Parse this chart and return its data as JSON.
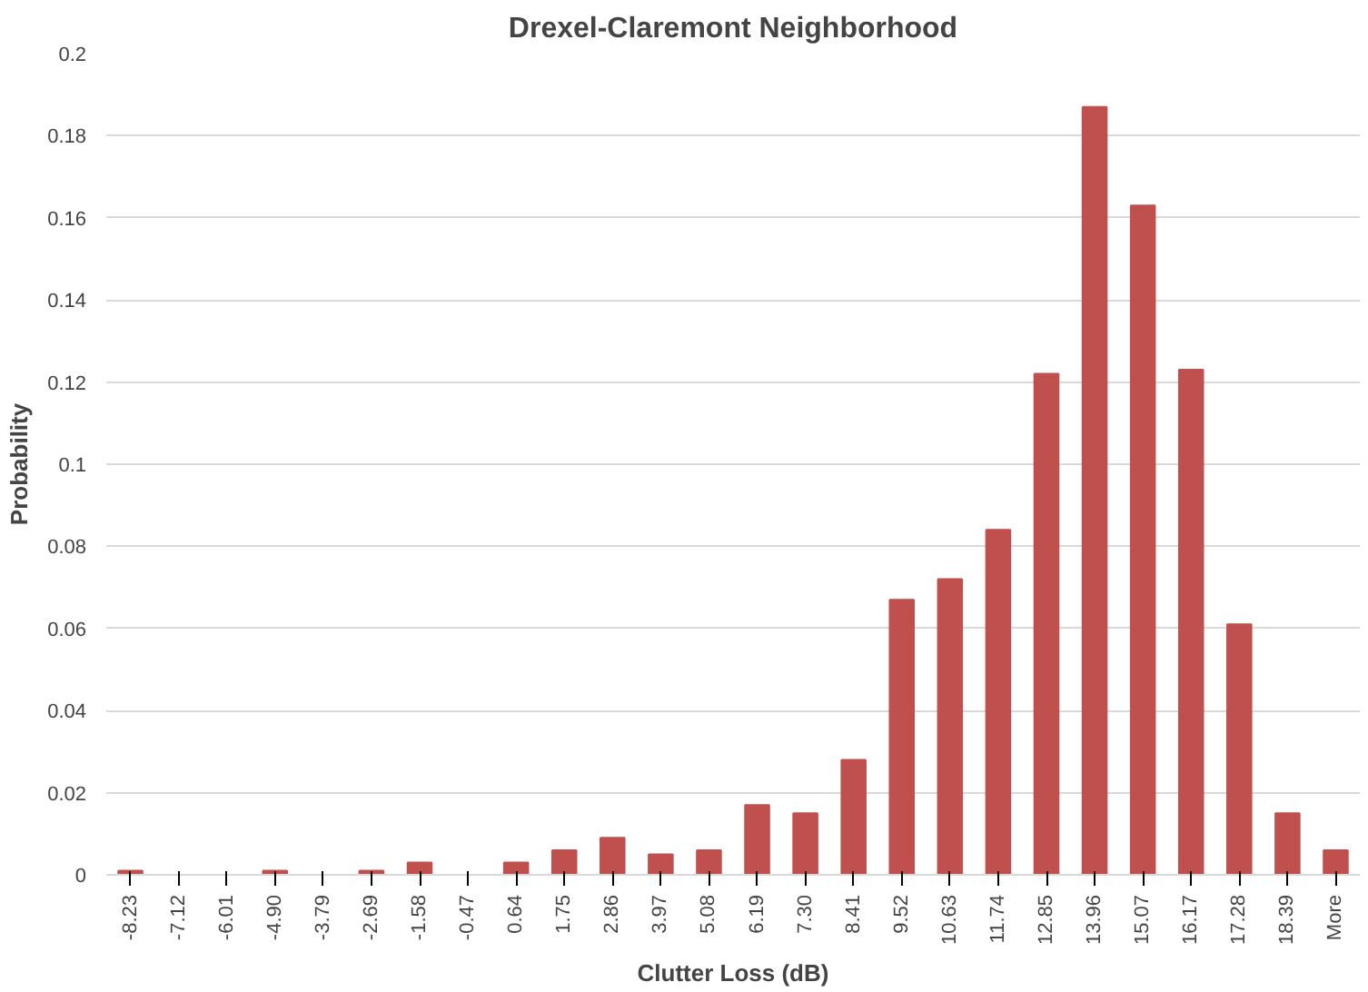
{
  "chart_data": {
    "type": "bar",
    "title": "Drexel-Claremont Neighborhood",
    "xlabel": "Clutter Loss (dB)",
    "ylabel": "Probability",
    "categories": [
      "-8.23",
      "-7.12",
      "-6.01",
      "-4.90",
      "-3.79",
      "-2.69",
      "-1.58",
      "-0.47",
      "0.64",
      "1.75",
      "2.86",
      "3.97",
      "5.08",
      "6.19",
      "7.30",
      "8.41",
      "9.52",
      "10.63",
      "11.74",
      "12.85",
      "13.96",
      "15.07",
      "16.17",
      "17.28",
      "18.39",
      "More"
    ],
    "values": [
      0.001,
      0,
      0,
      0.001,
      0,
      0.001,
      0.003,
      0,
      0.003,
      0.006,
      0.009,
      0.005,
      0.006,
      0.017,
      0.015,
      0.028,
      0.067,
      0.072,
      0.084,
      0.122,
      0.187,
      0.163,
      0.123,
      0.061,
      0.015,
      0.006
    ],
    "color": "#c0504d",
    "ylim": [
      0,
      0.2
    ],
    "yticks": [
      0,
      0.02,
      0.04,
      0.06,
      0.08,
      0.1,
      0.12,
      0.14,
      0.16,
      0.18,
      0.2
    ],
    "grid": "y"
  }
}
